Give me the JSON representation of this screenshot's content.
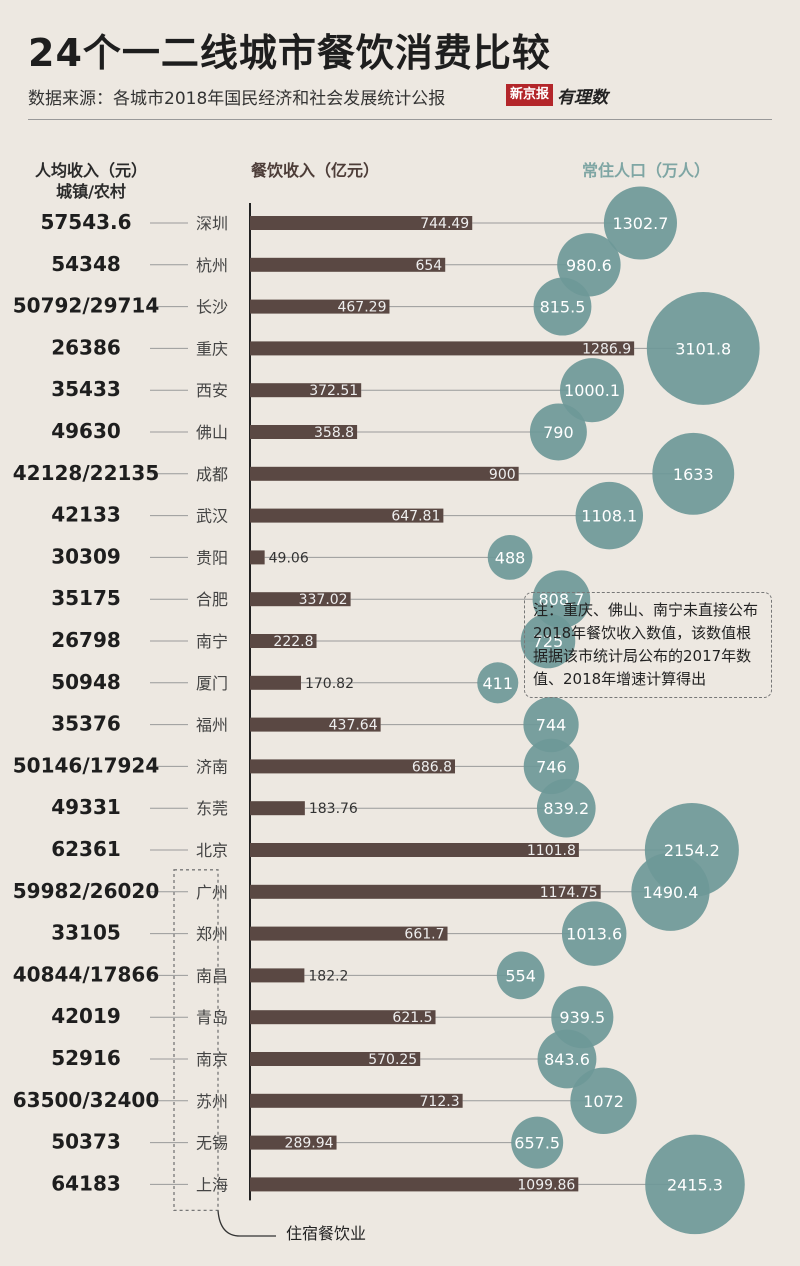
{
  "title": "24个一二线城市餐饮消费比较",
  "source": "数据来源：各城市2018年国民经济和社会发展统计公报",
  "brand": {
    "paper": "新京报",
    "mark": "有理数"
  },
  "headers": {
    "income_line1": "人均收入（元）",
    "income_line2": "城镇/农村",
    "revenue": "餐饮收入（亿元）",
    "population": "常住人口（万人）"
  },
  "note": "注：重庆、佛山、南宁未直接公布2018年餐饮收入数值，该数值根据据该市统计局公布的2017年数值、2018年增速计算得出",
  "bracket_label": "住宿餐饮业",
  "colors": {
    "bar": "#5a4843",
    "bubble": "#6e9898",
    "background": "#ede8e1",
    "line": "#9a9a9a"
  },
  "chart_data": {
    "type": "bar",
    "bubble_series": "常住人口（万人）",
    "bar_series": "餐饮收入（亿元）",
    "cities": [
      {
        "city": "深圳",
        "income": "57543.6",
        "revenue": 744.49,
        "revenue_label": "744.49",
        "population": 1302.7,
        "population_label": "1302.7",
        "group": false
      },
      {
        "city": "杭州",
        "income": "54348",
        "revenue": 654,
        "revenue_label": "654",
        "population": 980.6,
        "population_label": "980.6",
        "group": false
      },
      {
        "city": "长沙",
        "income": "50792/29714",
        "revenue": 467.29,
        "revenue_label": "467.29",
        "population": 815.5,
        "population_label": "815.5",
        "group": false
      },
      {
        "city": "重庆",
        "income": "26386",
        "revenue": 1286.9,
        "revenue_label": "1286.9",
        "population": 3101.8,
        "population_label": "3101.8",
        "group": false
      },
      {
        "city": "西安",
        "income": "35433",
        "revenue": 372.51,
        "revenue_label": "372.51",
        "population": 1000.1,
        "population_label": "1000.1",
        "group": false
      },
      {
        "city": "佛山",
        "income": "49630",
        "revenue": 358.8,
        "revenue_label": "358.8",
        "population": 790,
        "population_label": "790",
        "group": false
      },
      {
        "city": "成都",
        "income": "42128/22135",
        "revenue": 900,
        "revenue_label": "900",
        "population": 1633,
        "population_label": "1633",
        "group": false
      },
      {
        "city": "武汉",
        "income": "42133",
        "revenue": 647.81,
        "revenue_label": "647.81",
        "population": 1108.1,
        "population_label": "1108.1",
        "group": false
      },
      {
        "city": "贵阳",
        "income": "30309",
        "revenue": 49.06,
        "revenue_label": "49.06",
        "population": 488,
        "population_label": "488",
        "group": false
      },
      {
        "city": "合肥",
        "income": "35175",
        "revenue": 337.02,
        "revenue_label": "337.02",
        "population": 808.7,
        "population_label": "808.7",
        "group": false
      },
      {
        "city": "南宁",
        "income": "26798",
        "revenue": 222.8,
        "revenue_label": "222.8",
        "population": 725,
        "population_label": "725",
        "group": false
      },
      {
        "city": "厦门",
        "income": "50948",
        "revenue": 170.82,
        "revenue_label": "170.82",
        "population": 411,
        "population_label": "411",
        "group": false
      },
      {
        "city": "福州",
        "income": "35376",
        "revenue": 437.64,
        "revenue_label": "437.64",
        "population": 744,
        "population_label": "744",
        "group": false
      },
      {
        "city": "济南",
        "income": "50146/17924",
        "revenue": 686.8,
        "revenue_label": "686.8",
        "population": 746,
        "population_label": "746",
        "group": false
      },
      {
        "city": "东莞",
        "income": "49331",
        "revenue": 183.76,
        "revenue_label": "183.76",
        "population": 839.2,
        "population_label": "839.2",
        "group": false
      },
      {
        "city": "北京",
        "income": "62361",
        "revenue": 1101.8,
        "revenue_label": "1101.8",
        "population": 2154.2,
        "population_label": "2154.2",
        "group": false
      },
      {
        "city": "广州",
        "income": "59982/26020",
        "revenue": 1174.75,
        "revenue_label": "1174.75",
        "population": 1490.4,
        "population_label": "1490.4",
        "group": true
      },
      {
        "city": "郑州",
        "income": "33105",
        "revenue": 661.7,
        "revenue_label": "661.7",
        "population": 1013.6,
        "population_label": "1013.6",
        "group": true
      },
      {
        "city": "南昌",
        "income": "40844/17866",
        "revenue": 182.2,
        "revenue_label": "182.2",
        "population": 554,
        "population_label": "554",
        "group": true
      },
      {
        "city": "青岛",
        "income": "42019",
        "revenue": 621.5,
        "revenue_label": "621.5",
        "population": 939.5,
        "population_label": "939.5",
        "group": true
      },
      {
        "city": "南京",
        "income": "52916",
        "revenue": 570.25,
        "revenue_label": "570.25",
        "population": 843.6,
        "population_label": "843.6",
        "group": true
      },
      {
        "city": "苏州",
        "income": "63500/32400",
        "revenue": 712.3,
        "revenue_label": "712.3",
        "population": 1072,
        "population_label": "1072",
        "group": true
      },
      {
        "city": "无锡",
        "income": "50373",
        "revenue": 289.94,
        "revenue_label": "289.94",
        "population": 657.5,
        "population_label": "657.5",
        "group": true
      },
      {
        "city": "上海",
        "income": "64183",
        "revenue": 1099.86,
        "revenue_label": "1099.86",
        "population": 2415.3,
        "population_label": "2415.3",
        "group": true
      }
    ]
  }
}
